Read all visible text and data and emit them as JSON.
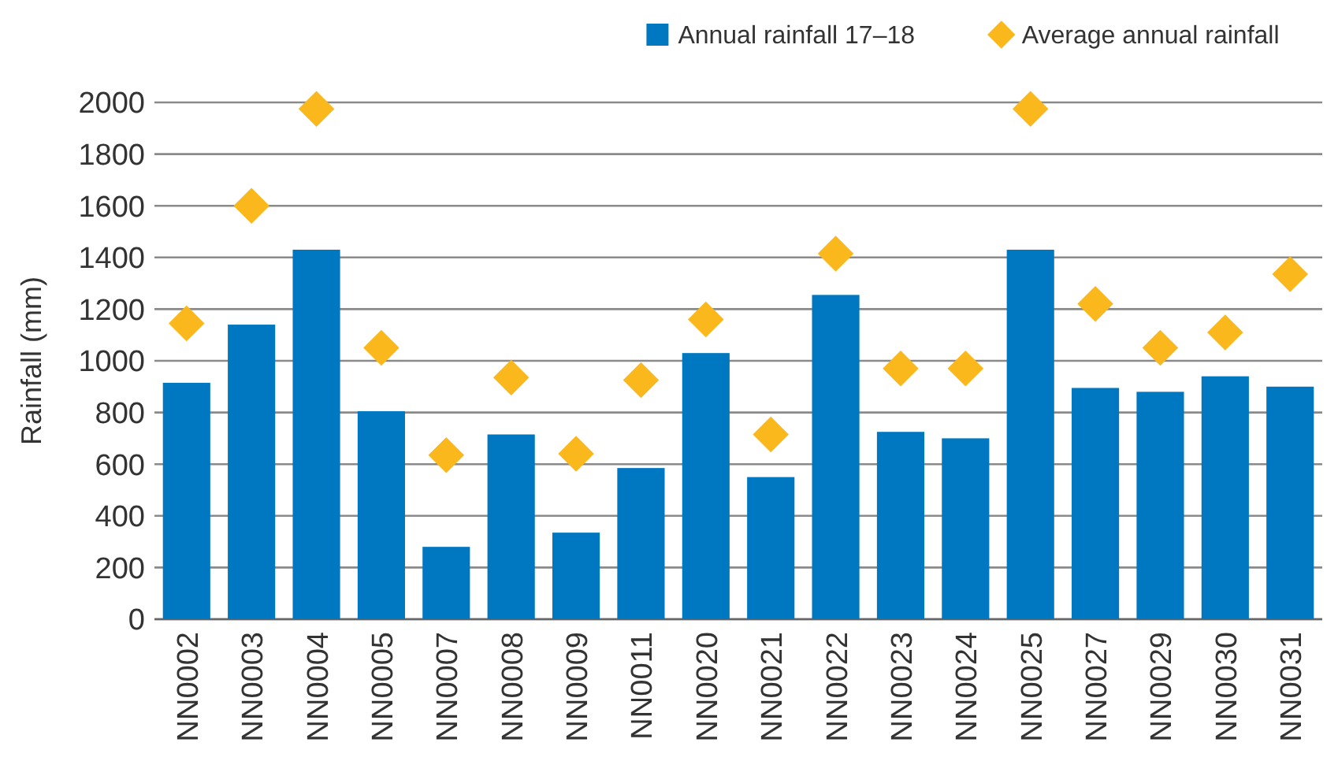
{
  "chart_data": {
    "type": "bar",
    "ylabel": "Rainfall (mm)",
    "categories": [
      "NN0002",
      "NN0003",
      "NN0004",
      "NN0005",
      "NN0007",
      "NN0008",
      "NN0009",
      "NN0011",
      "NN0020",
      "NN0021",
      "NN0022",
      "NN0023",
      "NN0024",
      "NN0025",
      "NN0027",
      "NN0029",
      "NN0030",
      "NN0031"
    ],
    "series": [
      {
        "name": "Annual rainfall 17–18",
        "color": "#0078c1",
        "values": [
          915,
          1140,
          1430,
          805,
          280,
          715,
          335,
          585,
          1030,
          550,
          1255,
          725,
          700,
          1430,
          895,
          880,
          940,
          900
        ]
      },
      {
        "name": "Average annual rainfall",
        "type": "scatter",
        "marker": "diamond",
        "color": "#fbb81c",
        "values": [
          1145,
          1600,
          1975,
          1050,
          635,
          935,
          640,
          925,
          1160,
          715,
          1415,
          970,
          970,
          1975,
          1220,
          1050,
          1110,
          1335
        ]
      }
    ],
    "ylim": [
      0,
      2000
    ],
    "yticks": [
      0,
      200,
      400,
      600,
      800,
      1000,
      1200,
      1400,
      1600,
      1800,
      2000
    ],
    "grid": "y",
    "legend": "top right"
  }
}
